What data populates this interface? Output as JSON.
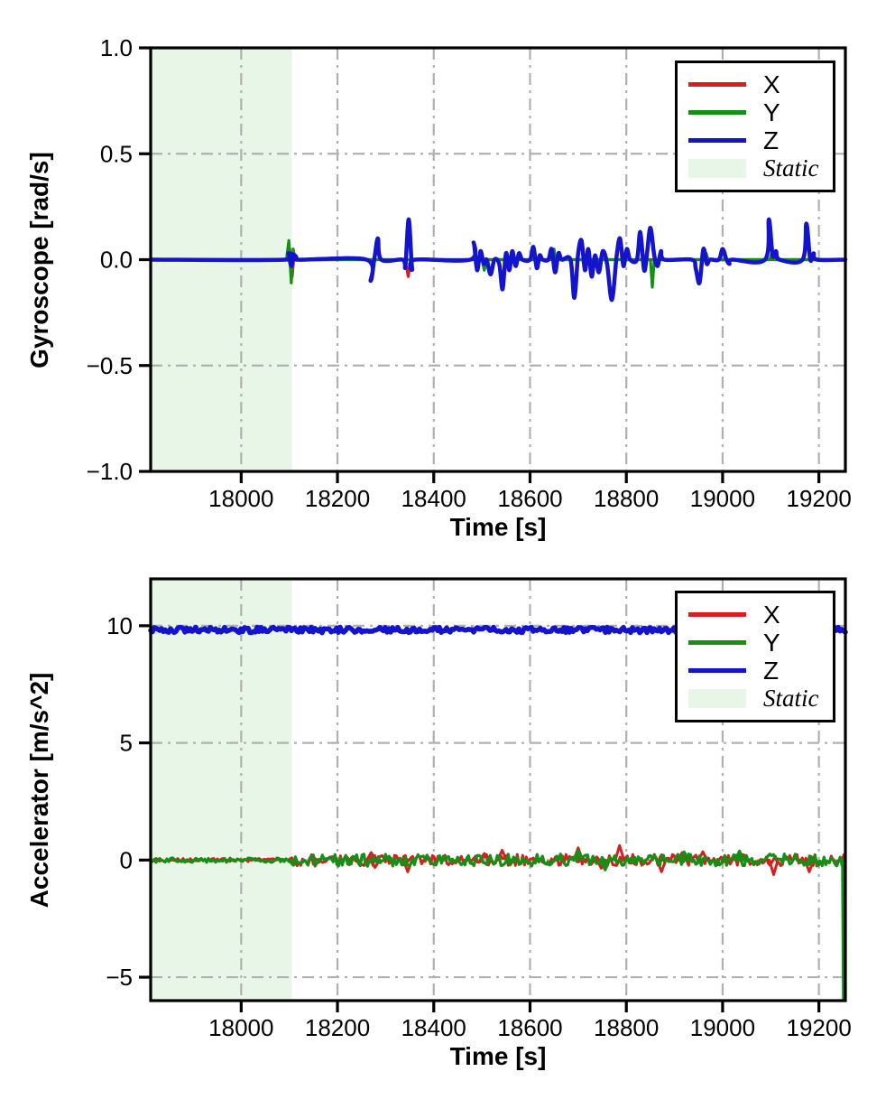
{
  "figure": {
    "background": "#ffffff"
  },
  "chart_data": [
    {
      "type": "line",
      "name": "gyroscope",
      "xlabel": "Time [s]",
      "ylabel": "Gyroscope [rad/s]",
      "xlim": [
        17812,
        19255
      ],
      "ylim": [
        -1.0,
        1.0
      ],
      "xticks": [
        18000,
        18200,
        18400,
        18600,
        18800,
        19000,
        19200
      ],
      "xtick_labels": [
        "18000",
        "18200",
        "18400",
        "18600",
        "18800",
        "19000",
        "19200"
      ],
      "yticks": [
        1.0,
        0.5,
        0.0,
        -0.5,
        -1.0
      ],
      "ytick_labels": [
        "1.0",
        "0.5",
        "0.0",
        "−0.5",
        "−1.0"
      ],
      "grid": {
        "on": true,
        "style": "dash-dot",
        "color": "#b0b0b0"
      },
      "static_region": {
        "x0": 17812,
        "x1": 18105,
        "color": "#e7f6e7"
      },
      "legend": {
        "position": "upper right",
        "entries": [
          {
            "label": "X",
            "swatch": "line",
            "color": "#d81f1f"
          },
          {
            "label": "Y",
            "swatch": "line",
            "color": "#149114"
          },
          {
            "label": "Z",
            "swatch": "line",
            "color": "#1414cc"
          },
          {
            "label": "Static",
            "swatch": "patch",
            "color": "#e7f6e7",
            "italic": true
          }
        ]
      },
      "series": [
        {
          "name": "X",
          "color": "#d81f1f",
          "width": 3.2,
          "points": [
            [
              17812,
              0
            ],
            [
              18096,
              0
            ],
            [
              18101,
              0.05
            ],
            [
              18106,
              -0.08
            ],
            [
              18110,
              0.03
            ],
            [
              18114,
              0
            ],
            [
              18338,
              0
            ],
            [
              18343,
              -0.03
            ],
            [
              18347,
              -0.08
            ],
            [
              18352,
              0
            ],
            [
              18642,
              0
            ],
            [
              18646,
              0.03
            ],
            [
              18650,
              -0.03
            ],
            [
              18654,
              0
            ],
            [
              19255,
              0
            ]
          ]
        },
        {
          "name": "Y",
          "color": "#149114",
          "width": 3.2,
          "points": [
            [
              17812,
              0
            ],
            [
              18094,
              0
            ],
            [
              18099,
              0.09
            ],
            [
              18104,
              -0.11
            ],
            [
              18108,
              0.05
            ],
            [
              18112,
              0
            ],
            [
              18500,
              0
            ],
            [
              18505,
              -0.05
            ],
            [
              18510,
              0
            ],
            [
              18646,
              0
            ],
            [
              18650,
              0.05
            ],
            [
              18654,
              -0.05
            ],
            [
              18658,
              0
            ],
            [
              18850,
              0
            ],
            [
              18854,
              -0.13
            ],
            [
              18858,
              0
            ],
            [
              18962,
              0
            ],
            [
              18966,
              0.03
            ],
            [
              18970,
              0
            ],
            [
              19098,
              0
            ],
            [
              19102,
              0.03
            ],
            [
              19106,
              0
            ],
            [
              19255,
              0
            ]
          ]
        },
        {
          "name": "Z",
          "color": "#1414cc",
          "width": 4.5,
          "smooth": true,
          "points": [
            [
              17812,
              0
            ],
            [
              18092,
              0
            ],
            [
              18098,
              0.03
            ],
            [
              18104,
              -0.03
            ],
            [
              18110,
              0.02
            ],
            [
              18116,
              0
            ],
            [
              18260,
              0
            ],
            [
              18269,
              -0.1
            ],
            [
              18277,
              0.01
            ],
            [
              18284,
              0.1
            ],
            [
              18291,
              0
            ],
            [
              18335,
              0
            ],
            [
              18341,
              -0.03
            ],
            [
              18348,
              0.19
            ],
            [
              18355,
              -0.04
            ],
            [
              18361,
              0
            ],
            [
              18476,
              0
            ],
            [
              18483,
              0.08
            ],
            [
              18490,
              -0.05
            ],
            [
              18497,
              0.04
            ],
            [
              18504,
              -0.02
            ],
            [
              18510,
              0
            ],
            [
              18518,
              -0.07
            ],
            [
              18526,
              0
            ],
            [
              18536,
              -0.02
            ],
            [
              18543,
              -0.14
            ],
            [
              18550,
              0.03
            ],
            [
              18557,
              -0.05
            ],
            [
              18563,
              0.04
            ],
            [
              18570,
              -0.03
            ],
            [
              18577,
              0.03
            ],
            [
              18584,
              0
            ],
            [
              18600,
              0
            ],
            [
              18607,
              0.06
            ],
            [
              18614,
              -0.04
            ],
            [
              18620,
              0.02
            ],
            [
              18626,
              0
            ],
            [
              18638,
              0
            ],
            [
              18645,
              0.05
            ],
            [
              18652,
              -0.06
            ],
            [
              18659,
              0.03
            ],
            [
              18666,
              0
            ],
            [
              18684,
              0
            ],
            [
              18692,
              -0.18
            ],
            [
              18700,
              0.03
            ],
            [
              18707,
              0.09
            ],
            [
              18714,
              -0.05
            ],
            [
              18721,
              0.05
            ],
            [
              18728,
              -0.08
            ],
            [
              18735,
              0.02
            ],
            [
              18743,
              -0.06
            ],
            [
              18751,
              0.04
            ],
            [
              18760,
              -0.02
            ],
            [
              18770,
              -0.19
            ],
            [
              18780,
              0.02
            ],
            [
              18787,
              0.1
            ],
            [
              18794,
              -0.03
            ],
            [
              18801,
              0.05
            ],
            [
              18808,
              0
            ],
            [
              18822,
              0
            ],
            [
              18829,
              0.13
            ],
            [
              18837,
              -0.05
            ],
            [
              18843,
              0.03
            ],
            [
              18850,
              0.15
            ],
            [
              18858,
              0.02
            ],
            [
              18865,
              -0.03
            ],
            [
              18872,
              0.04
            ],
            [
              18879,
              0
            ],
            [
              18936,
              0
            ],
            [
              18944,
              -0.04
            ],
            [
              18952,
              -0.11
            ],
            [
              18960,
              0.05
            ],
            [
              18967,
              -0.02
            ],
            [
              18974,
              0
            ],
            [
              18992,
              0
            ],
            [
              19000,
              0.05
            ],
            [
              19008,
              0
            ],
            [
              19014,
              -0.02
            ],
            [
              19020,
              0
            ],
            [
              19088,
              0
            ],
            [
              19096,
              0.19
            ],
            [
              19104,
              0.02
            ],
            [
              19111,
              0.04
            ],
            [
              19118,
              0
            ],
            [
              19166,
              0
            ],
            [
              19174,
              0.17
            ],
            [
              19182,
              0
            ],
            [
              19189,
              0.03
            ],
            [
              19196,
              0
            ],
            [
              19255,
              0
            ]
          ]
        }
      ]
    },
    {
      "type": "line",
      "name": "accelerometer",
      "xlabel": "Time [s]",
      "ylabel": "Accelerator [m/s^2]",
      "xlim": [
        17812,
        19255
      ],
      "ylim": [
        -6,
        12
      ],
      "xticks": [
        18000,
        18200,
        18400,
        18600,
        18800,
        19000,
        19200
      ],
      "xtick_labels": [
        "18000",
        "18200",
        "18400",
        "18600",
        "18800",
        "19000",
        "19200"
      ],
      "yticks": [
        10,
        5,
        0,
        -5
      ],
      "ytick_labels": [
        "10",
        "5",
        "0",
        "−5"
      ],
      "grid": {
        "on": true,
        "style": "dash-dot",
        "color": "#b0b0b0"
      },
      "static_region": {
        "x0": 17812,
        "x1": 18105,
        "color": "#e7f6e7"
      },
      "legend": {
        "position": "upper right",
        "entries": [
          {
            "label": "X",
            "swatch": "line",
            "color": "#d81f1f"
          },
          {
            "label": "Y",
            "swatch": "line",
            "color": "#149114"
          },
          {
            "label": "Z",
            "swatch": "line",
            "color": "#1414cc"
          },
          {
            "label": "Static",
            "swatch": "patch",
            "color": "#e7f6e7",
            "italic": true
          }
        ]
      },
      "series": [
        {
          "name": "X",
          "color": "#d81f1f",
          "width": 3,
          "noise": [
            {
              "x0": 17812,
              "x1": 18105,
              "y": 0,
              "amp": 0.07
            },
            {
              "x0": 18105,
              "x1": 19252,
              "y": 0,
              "amp": 0.24
            }
          ],
          "spikes": [
            [
              18270,
              0.32
            ],
            [
              18278,
              -0.32
            ],
            [
              18346,
              -0.5
            ],
            [
              18505,
              0.28
            ],
            [
              18542,
              0.42
            ],
            [
              18700,
              0.52
            ],
            [
              18748,
              -0.35
            ],
            [
              18786,
              0.62
            ],
            [
              18873,
              -0.5
            ],
            [
              18916,
              0.32
            ],
            [
              18959,
              0.35
            ],
            [
              19106,
              -0.62
            ],
            [
              19180,
              -0.5
            ]
          ]
        },
        {
          "name": "Y",
          "color": "#149114",
          "width": 3.2,
          "noise": [
            {
              "x0": 17812,
              "x1": 18105,
              "y": 0,
              "amp": 0.1
            },
            {
              "x0": 18105,
              "x1": 19249,
              "y": 0,
              "amp": 0.26
            }
          ],
          "spikes": [
            [
              18700,
              0.4
            ],
            [
              18756,
              -0.42
            ],
            [
              18920,
              0.35
            ],
            [
              19035,
              0.38
            ],
            [
              19251,
              -6,
              2
            ]
          ]
        },
        {
          "name": "Z",
          "color": "#1414cc",
          "width": 5.5,
          "noise": [
            {
              "x0": 17812,
              "x1": 19255,
              "y": 9.82,
              "amp": 0.12
            }
          ]
        }
      ]
    }
  ]
}
